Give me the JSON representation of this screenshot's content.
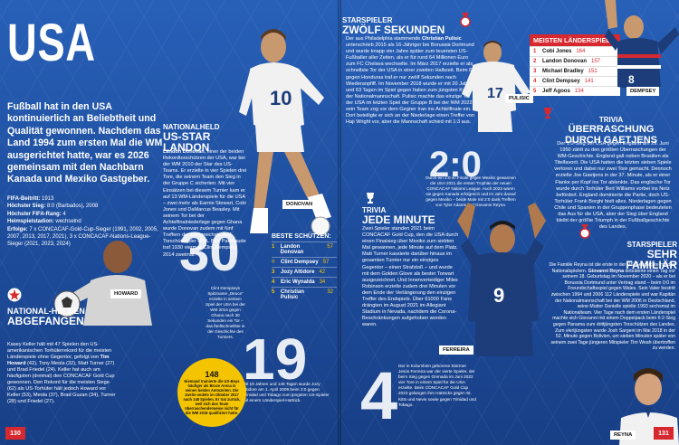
{
  "header": {
    "title": "USA"
  },
  "intro": "Fußball hat in den USA kontinuierlich an Beliebtheit und Qualität gewonnen. Nachdem das Land 1994 zum ersten Mal die WM ausgerichtet hatte, war es 2026 gemeinsam mit den Nachbarn Kanada und Mexiko Gastgeber.",
  "facts": {
    "fifa_beitritt_label": "FIFA-Beitritt:",
    "fifa_beitritt": "1913",
    "niederlage_label": "Höchster Sieg:",
    "niederlage": "8:0 (Barbados), 2008",
    "rang_label": "Höchster FIFA-Rang:",
    "rang": "4",
    "heim_label": "Heimspielstadion:",
    "heim": "wechselnd",
    "erfolge_label": "Erfolge:",
    "erfolge": "7 x CONCACAF-Gold-Cup-Sieger (1991, 2002, 2005, 2007, 2013, 2017, 2021), 3 x CONCACAF-Nations-League-Sieger (2021, 2023, 2024)"
  },
  "nationalheld_donovan": {
    "kicker": "NATIONALHELD",
    "title": "US-STAR LANDON",
    "body_name": "Landon Donovan",
    "body": ", einer der beiden Rekordtorschützen der USA, war bei der WM 2010 der Star des US-Teams. Er erzielte in vier Spielen drei Tore, die seinem Team den Sieg in der Gruppe C sicherten. Mit vier Einsätzen bei diesem Turnier kam er auf 13 WM-Länderspiele für die USA – zwei mehr als Earnie Stewart, Cobi Jones und DaMarcus Beasley. Mit seinem Tor bei der Achtelfinalniederlage gegen Ghana wurde Donovan zudem mit fünf Treffern der erfolgreichste WM-Torschütze der USA. Bert Patenaude traf 1930 viermal, Clint Dempsey 2014 zweimal.",
    "photo_label": "DONOVAN"
  },
  "zwoelf_sekunden": {
    "kicker": "STARSPIELER",
    "title": "ZWÖLF SEKUNDEN",
    "body_pre": "Der aus Philadelphia stammende ",
    "body_name": "Christian Pulisic",
    "body": " unterschrieb 2015 als 16-Jähriger bei Borussia Dortmund und wurde knapp vier Jahre später zum teuersten US-Fußballer aller Zeiten, als er für rund 64 Millionen Euro zum FC Chelsea wechselte. Im März 2017 erzielte er als schnellste Tor der USA in einer zweiten Halbzeit. Beim 6:0 gegen Honduras traf er nur zwölf Sekunden nach Wiederanpfiff. Im November 2018 wurde er mit 20 Jahren und 63 Tagen im Spiel gegen Italien zum jüngsten Kapitän der Nationalmannschaft. Pulisic machte das einzige Tor der USA im letzten Spiel der Gruppe B bei der WM 2022 – sein Team zog vor dem Gegner Iran ins Achtelfinale ein. Dort beteiligte er sich an der Niederlage einen Treffer von Haji Wright vor, aber die Mannschaft schied mit 1:3 aus.",
    "photo_label": "PULISIC"
  },
  "laenderspiele": {
    "header": "MEISTEN LÄNDERSPIELE:",
    "rows": [
      {
        "n": "1",
        "name": "Cobi Jones",
        "val": "164"
      },
      {
        "n": "2",
        "name": "Landon Donovan",
        "val": "157"
      },
      {
        "n": "3",
        "name": "Michael Bradley",
        "val": "151"
      },
      {
        "n": "4",
        "name": "Clint Dempsey",
        "val": "141"
      },
      {
        "n": "5",
        "name": "Jeff Agoos",
        "val": "134"
      }
    ],
    "photo_label": "DEMPSEY"
  },
  "trivia_gaetjens": {
    "kicker": "TRIVIA",
    "title": "ÜBERRASCHUNG DURCH GAETJENS",
    "body": "Der 1:0-Sieg der USA gegen England am 29. Juni 1950 zählt zu den größten Überraschungen der WM-Geschichte. England galt neben Brasilien als Titelfavorit. Die USA hatten die letzten sieben Spiele verloren und dabei nur zwei Tore gemacht. Dennoch erzielte Joe Gaetjens in der 37. Minute, als er einer Flanke per Kopf ins Tor ablenkte. Das englische Tor wurde durch Torhüter Bert Williams vorbei ins Netz befördert. England dominierte die Partie, doch US-Torhüter Frank Borghi hielt alles. Niederlagen gegen Chile und Spanien in der Gruppenphase bedeuteten das Aus für die USA, aber der Sieg über England bleibt der größte Triumph in der Fußballgeschichte des Landes."
  },
  "number_2_0": {
    "value": "2:0",
    "caption": "Durch ein 2:0 im Finale gegen Mexiko gewannen die USA 2021 die ersten Trophäe der neuen CONCACAF Nations League. Auch 2023 waren sie gegen Kanada erfolgreich und im Jahr darauf gegen Mexiko – beide Male mit 2:0 dank Treffern von Tyler Adams und Giovanni Reyna."
  },
  "trivia_minute": {
    "kicker": "TRIVIA",
    "title": "JEDE MINUTE",
    "body": "Zwei Spieler standen 2021 beim CONCACAF Gold Cup, den die USA durch einen Finalsieg über Mexiko zum siebten Mal gewannen, jede Minute auf dem Platz. Matt Turner kassierte darüber hinaus im gesamten Turnier nur ein einziges Gegentor – einen Strafstoß – und wurde mit dem Golden Glove als bester Torwart ausgezeichnet. Und Innenverteidiger Miles Robinson erzielte zudem drei Minuten vor dem Ende der Verlängerung den einzigen Treffer des Endspiels. Über 61000 Fans drängten im August 2021 im Allegiant Stadium in Nevada, nachdem die Corona-Beschränkungen aufgehoben worden waren.",
    "photo_label": "FERREIRA"
  },
  "number_4": {
    "value": "4",
    "caption": "Der in Kolumbien geborene Stürmer Jesús Ferreira war der vierte Spieler, der beim Sieg gegen Grenada im Juni 2022 vier Tore in einem Spiel für die USA erzielte. Beim CONCACAF Gold Cup 2023 gelangen ihm Hattricks gegen St. Kitts und Nevis sowie gegen Trinidad und Tobago."
  },
  "starspieler_reyna": {
    "kicker": "STARSPIELER",
    "title": "SEHR FAMILIÄR",
    "body_pre": "Die Familie Reyna ist die erste in der US-Geschichte mit drei Nationalspielern. ",
    "body_name": "Giovanni Reyna",
    "body": " debütierte einen Tag vor seinem 18. Geburtstag im November 2020 – als er bei Borussia Dortmund unter Vertrag stand – beim 0:0 im Freundschaftsspiel gegen Wales. Sein Vater bestritt zwischen 1994 und 2006 112 Länderspiele und war Kapitän der Nationalmannschaft bei der WM 2006 in Deutschland, seine Mutter Danielle spielte 1993 sechsmal im Nationalteam. Vier Tage nach dem ersten Länderspiel machte sich Giovanni mit einem Doppelpack beim 6:2-Sieg gegen Panama zum drittjüngsten Torschützen des Landes. Zum viertjüngsten wurde Josh Sargent im Mai 2018 in der 52. Minute gegen Bolivien, um sieben Minuten später von seinem zwei Tage jüngeren Mitspieler Tim Weah übertroffen zu werden.",
    "photo_label": "REYNA"
  },
  "nationalhelden": {
    "kicker": "NATIONAL-HELDEN",
    "title": "ABGEFANGEN",
    "body_pre": "Kasey Keller hält mit 47 Spielen den US-amerikanischen Torhüterrekord für die meisten Länderspiele ohne Gegentor, gefolgt von ",
    "body_name1": "Tim Howard",
    "body_mid1": " (42), Tony Meola (32), Matt Turner (27) und Brad Friedel (24). Keller hat auch am häufigsten (dreimal) den CONCACAF Gold Cup gewonnen. Den Rekord für die meisten Siege (62) als US-Torhüter hält jedoch Howard vor Keller (53), Meola (37), Brad Guzan (34), Turner (28) und Friedel (27).",
    "photo_label": "HOWARD"
  },
  "number_30": {
    "value": "30",
    "caption": "Clint Dempseys Spitzname „Deuce“ erzielte in seinem Spiel der USA bei der WM 2014 gegen Ghana nach 30 Sekunden ein Tor – das fünftschnellste in der Geschichte des Turniers."
  },
  "torschuetzen": {
    "header": "BESTE SCHÜTZEN:",
    "rows": [
      {
        "n": "1",
        "name": "Landon Donovan",
        "val": "57"
      },
      {
        "n": "=",
        "name": "Clint Dempsey",
        "val": "57"
      },
      {
        "n": "3",
        "name": "Jozy Altidore",
        "val": "42"
      },
      {
        "n": "4",
        "name": "Eric Wynalda",
        "val": "34"
      },
      {
        "n": "5",
        "name": "Christian Pulisic",
        "val": "32"
      }
    ]
  },
  "number_19": {
    "value": "19",
    "caption": "Mit 19 Jahren und 146 Tagen wurde Jozy Altidore am 1. April 2009 beim 3:0 gegen Trinidad und Tobago zum jüngsten US-Spieler mit einem Länderspiel-Hattrick."
  },
  "badge_148": {
    "value": "148",
    "text": "Niemand trainierte die US-Boys häufiger als Bruce Arena in seinen beiden Amtszeiten. Die zweite endete im Oktober 2017 nach 148 Spielen. Er trat zurück, weil sich das Team überraschenderweise nicht für die WM 2018 qualifiziert hatte."
  },
  "page_left": "130",
  "page_right": "131",
  "colors": {
    "accent_red": "#d7282f",
    "bg_blue": "#1f52a3",
    "badge_yellow": "#f5c400"
  }
}
